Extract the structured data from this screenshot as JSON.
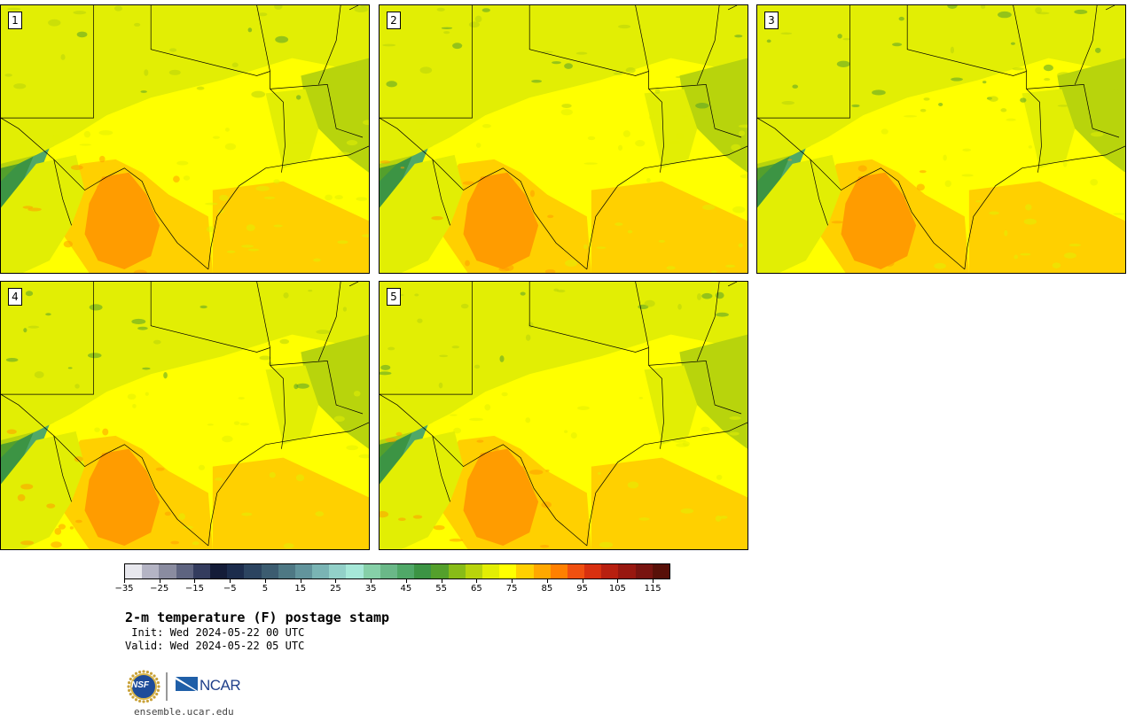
{
  "title": "2-m temperature (F) postage stamp",
  "init": " Init: Wed 2024-05-22 00 UTC",
  "valid": "Valid: Wed 2024-05-22 05 UTC",
  "site": "ensemble.ucar.edu",
  "logos": {
    "nsf": "NSF",
    "ncar": "NCAR"
  },
  "panels": [
    {
      "label": "1"
    },
    {
      "label": "2"
    },
    {
      "label": "3"
    },
    {
      "label": "4"
    },
    {
      "label": "5"
    }
  ],
  "colorbar": {
    "tick_labels": [
      "−35",
      "−25",
      "−15",
      "−5",
      "5",
      "15",
      "25",
      "35",
      "45",
      "55",
      "65",
      "75",
      "85",
      "95",
      "105",
      "115"
    ],
    "tick_values": [
      -35,
      -25,
      -15,
      -5,
      5,
      15,
      25,
      35,
      45,
      55,
      65,
      75,
      85,
      95,
      105,
      115
    ],
    "min": -35,
    "max": 120,
    "colors": [
      "#e8e8ee",
      "#b4b4c4",
      "#8a8ca0",
      "#5e6480",
      "#343c5e",
      "#141c38",
      "#1c2c4c",
      "#2c4460",
      "#3c5c70",
      "#4e7884",
      "#62949c",
      "#7ab4b4",
      "#92d0c8",
      "#a6e8d8",
      "#86d0a8",
      "#6ab888",
      "#50a868",
      "#3c9444",
      "#54a02c",
      "#88bc18",
      "#b8d40c",
      "#e2ee04",
      "#ffff00",
      "#ffd000",
      "#ffa800",
      "#ff8000",
      "#f05010",
      "#d83010",
      "#b82010",
      "#981810",
      "#781410",
      "#581008"
    ]
  },
  "map_colors": {
    "very_hot": "#ff9c00",
    "hot": "#ffd000",
    "warm": "#ffff00",
    "mild": "#e2ee04",
    "cool": "#b8d40c",
    "cooler": "#88bc18",
    "cold": "#54a02c",
    "colder": "#3c9444",
    "coldest": "#50a868",
    "boundary": "#000000"
  }
}
